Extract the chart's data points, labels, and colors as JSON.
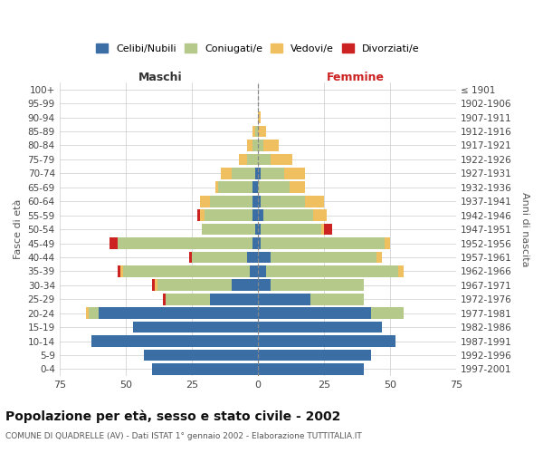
{
  "age_groups": [
    "0-4",
    "5-9",
    "10-14",
    "15-19",
    "20-24",
    "25-29",
    "30-34",
    "35-39",
    "40-44",
    "45-49",
    "50-54",
    "55-59",
    "60-64",
    "65-69",
    "70-74",
    "75-79",
    "80-84",
    "85-89",
    "90-94",
    "95-99",
    "100+"
  ],
  "birth_years": [
    "1997-2001",
    "1992-1996",
    "1987-1991",
    "1982-1986",
    "1977-1981",
    "1972-1976",
    "1967-1971",
    "1962-1966",
    "1957-1961",
    "1952-1956",
    "1947-1951",
    "1942-1946",
    "1937-1941",
    "1932-1936",
    "1927-1931",
    "1922-1926",
    "1917-1921",
    "1912-1916",
    "1907-1911",
    "1902-1906",
    "≤ 1901"
  ],
  "males": {
    "celibi": [
      40,
      43,
      63,
      47,
      60,
      18,
      10,
      3,
      4,
      2,
      1,
      2,
      2,
      2,
      1,
      0,
      0,
      0,
      0,
      0,
      0
    ],
    "coniugati": [
      0,
      0,
      0,
      0,
      4,
      17,
      28,
      48,
      21,
      51,
      20,
      18,
      16,
      13,
      9,
      4,
      2,
      1,
      0,
      0,
      0
    ],
    "vedovi": [
      0,
      0,
      0,
      0,
      1,
      0,
      1,
      1,
      0,
      0,
      0,
      2,
      4,
      1,
      4,
      3,
      2,
      1,
      0,
      0,
      0
    ],
    "divorziati": [
      0,
      0,
      0,
      0,
      0,
      1,
      1,
      1,
      1,
      3,
      0,
      1,
      0,
      0,
      0,
      0,
      0,
      0,
      0,
      0,
      0
    ]
  },
  "females": {
    "nubili": [
      40,
      43,
      52,
      47,
      43,
      20,
      5,
      3,
      5,
      1,
      1,
      2,
      1,
      0,
      1,
      0,
      0,
      0,
      0,
      0,
      0
    ],
    "coniugate": [
      0,
      0,
      0,
      0,
      12,
      20,
      35,
      50,
      40,
      47,
      23,
      19,
      17,
      12,
      9,
      5,
      2,
      0,
      0,
      0,
      0
    ],
    "vedove": [
      0,
      0,
      0,
      0,
      0,
      0,
      0,
      2,
      2,
      2,
      1,
      5,
      7,
      6,
      8,
      8,
      6,
      3,
      1,
      0,
      0
    ],
    "divorziate": [
      0,
      0,
      0,
      0,
      0,
      0,
      0,
      0,
      0,
      0,
      3,
      0,
      0,
      0,
      0,
      0,
      0,
      0,
      0,
      0,
      0
    ]
  },
  "color_celibi": "#3a6ea5",
  "color_coniugati": "#b5c98a",
  "color_vedovi": "#f0c060",
  "color_divorziati": "#cc2222",
  "color_background": "#ffffff",
  "color_grid": "#cccccc",
  "title": "Popolazione per età, sesso e stato civile - 2002",
  "subtitle": "COMUNE DI QUADRELLE (AV) - Dati ISTAT 1° gennaio 2002 - Elaborazione TUTTITALIA.IT",
  "xlabel_left": "Maschi",
  "xlabel_right": "Femmine",
  "ylabel_left": "Fasce di età",
  "ylabel_right": "Anni di nascita",
  "xlim": 75,
  "legend_labels": [
    "Celibi/Nubili",
    "Coniugati/e",
    "Vedovi/e",
    "Divorziati/e"
  ]
}
